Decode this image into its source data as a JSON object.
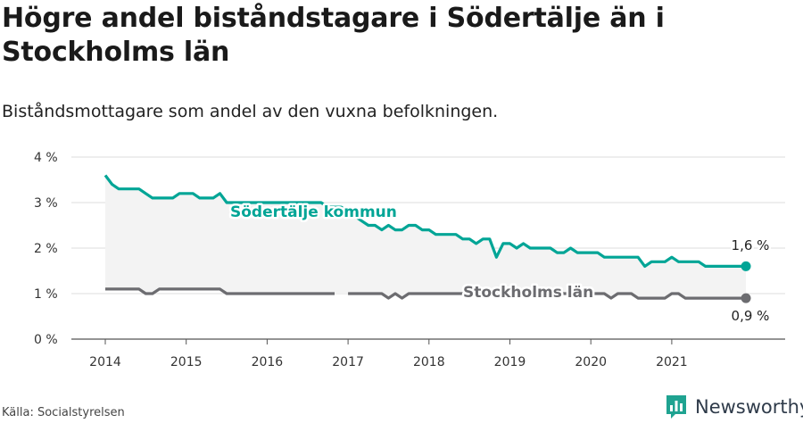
{
  "header": {
    "title": "Högre andel biståndstagare i Södertälje än i Stockholms län",
    "subtitle": "Biståndsmottagare som andel av den vuxna befolkningen."
  },
  "footer": {
    "source": "Källa: Socialstyrelsen",
    "brand": "Newsworthy"
  },
  "colors": {
    "sodertalje": "#00a596",
    "stockholm": "#6c6c70",
    "band": "#f3f3f3",
    "grid": "#dddddd"
  },
  "chart_data": {
    "type": "line",
    "title": "Högre andel biståndstagare i Södertälje än i Stockholms län",
    "subtitle": "Biståndsmottagare som andel av den vuxna befolkningen.",
    "x_ticks": [
      "2014",
      "2015",
      "2016",
      "2017",
      "2018",
      "2019",
      "2020",
      "2021"
    ],
    "y_ticks": [
      "0 %",
      "1 %",
      "2 %",
      "3 %",
      "4 %"
    ],
    "ylim": [
      0,
      4
    ],
    "xlim": [
      "2014-01",
      "2021-12"
    ],
    "grid": true,
    "legend": "inline labels",
    "series": [
      {
        "name": "Södertälje kommun",
        "color": "#00a596",
        "start": "2014-01",
        "values": [
          3.6,
          3.4,
          3.3,
          3.3,
          3.3,
          3.3,
          3.2,
          3.1,
          3.1,
          3.1,
          3.1,
          3.2,
          3.2,
          3.2,
          3.1,
          3.1,
          3.1,
          3.2,
          3.0,
          3.0,
          3.0,
          3.0,
          3.0,
          3.0,
          3.0,
          3.0,
          3.0,
          3.0,
          3.0,
          3.0,
          3.0,
          3.0,
          3.0,
          2.9,
          2.9,
          2.9,
          2.8,
          2.7,
          2.6,
          2.5,
          2.5,
          2.4,
          2.5,
          2.4,
          2.4,
          2.5,
          2.5,
          2.4,
          2.4,
          2.3,
          2.3,
          2.3,
          2.3,
          2.2,
          2.2,
          2.1,
          2.2,
          2.2,
          1.8,
          2.1,
          2.1,
          2.0,
          2.1,
          2.0,
          2.0,
          2.0,
          2.0,
          1.9,
          1.9,
          2.0,
          1.9,
          1.9,
          1.9,
          1.9,
          1.8,
          1.8,
          1.8,
          1.8,
          1.8,
          1.8,
          1.6,
          1.7,
          1.7,
          1.7,
          1.8,
          1.7,
          1.7,
          1.7,
          1.7,
          1.6,
          1.6,
          1.6,
          1.6,
          1.6,
          1.6,
          1.6
        ],
        "end_label": "1,6 %"
      },
      {
        "name": "Stockholms län",
        "color": "#6c6c70",
        "start": "2014-01",
        "values": [
          1.1,
          1.1,
          1.1,
          1.1,
          1.1,
          1.1,
          1.0,
          1.0,
          1.1,
          1.1,
          1.1,
          1.1,
          1.1,
          1.1,
          1.1,
          1.1,
          1.1,
          1.1,
          1.0,
          1.0,
          1.0,
          1.0,
          1.0,
          1.0,
          1.0,
          1.0,
          1.0,
          1.0,
          1.0,
          1.0,
          1.0,
          1.0,
          1.0,
          1.0,
          1.0,
          null,
          1.0,
          1.0,
          1.0,
          1.0,
          1.0,
          1.0,
          0.9,
          1.0,
          0.9,
          1.0,
          1.0,
          1.0,
          1.0,
          1.0,
          1.0,
          1.0,
          1.0,
          1.0,
          1.0,
          1.0,
          1.0,
          1.0,
          1.0,
          1.0,
          1.0,
          1.0,
          1.0,
          1.0,
          1.0,
          1.0,
          1.0,
          1.0,
          1.0,
          1.0,
          1.0,
          1.0,
          1.0,
          1.0,
          1.0,
          0.9,
          1.0,
          1.0,
          1.0,
          0.9,
          0.9,
          0.9,
          0.9,
          0.9,
          1.0,
          1.0,
          0.9,
          0.9,
          0.9,
          0.9,
          0.9,
          0.9,
          0.9,
          0.9,
          0.9,
          0.9
        ],
        "end_label": "0,9 %"
      }
    ]
  }
}
